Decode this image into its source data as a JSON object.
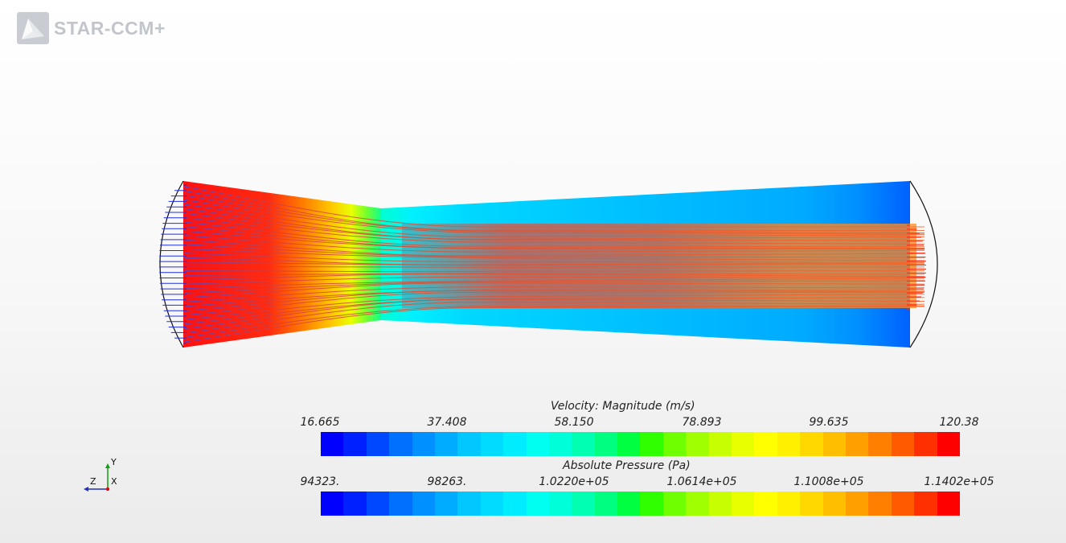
{
  "app": {
    "name": "STAR-CCM+"
  },
  "scene": {
    "velocity_palette": [
      "#1f2fe0",
      "#ff1a10"
    ],
    "contour_colors": [
      "#0000ff",
      "#0040ff",
      "#0080ff",
      "#00bfff",
      "#00ffff",
      "#00ffbf",
      "#00ff80",
      "#40ff00",
      "#80ff00",
      "#bfff00",
      "#ffff00",
      "#ffbf00",
      "#ff8000",
      "#ff4000",
      "#ff0000"
    ]
  },
  "legends": {
    "velocity": {
      "title": "Velocity: Magnitude (m/s)",
      "ticks": [
        "16.665",
        "37.408",
        "58.150",
        "78.893",
        "99.635",
        "120.38"
      ]
    },
    "pressure": {
      "title": "Absolute Pressure (Pa)",
      "ticks": [
        "94323.",
        "98263.",
        "1.0220e+05",
        "1.0614e+05",
        "1.1008e+05",
        "1.1402e+05"
      ]
    },
    "colormap": [
      "#0000ff",
      "#0020ff",
      "#0048ff",
      "#0070ff",
      "#0090ff",
      "#00acff",
      "#00c8ff",
      "#00dcff",
      "#00ecff",
      "#00fff0",
      "#00ffd8",
      "#00ffb0",
      "#00ff80",
      "#00ff40",
      "#30ff00",
      "#70ff00",
      "#a0ff00",
      "#c8ff00",
      "#e8ff00",
      "#ffff00",
      "#fff000",
      "#ffd800",
      "#ffbf00",
      "#ffa000",
      "#ff8000",
      "#ff5a00",
      "#ff3000",
      "#ff0000"
    ]
  },
  "triad": {
    "y_label": "Y",
    "z_label": "Z",
    "x_label": "X"
  }
}
